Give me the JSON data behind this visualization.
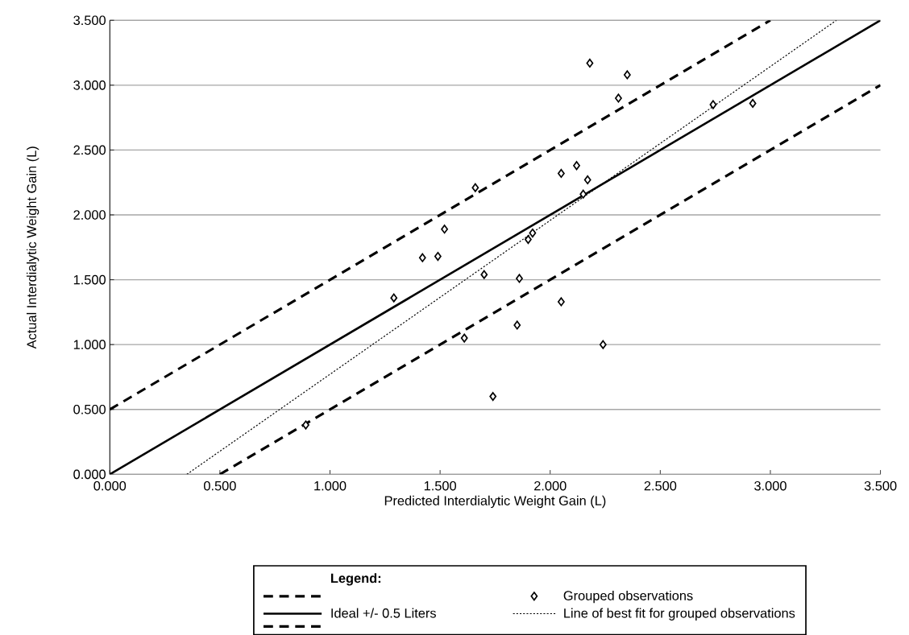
{
  "chart_data": {
    "type": "scatter",
    "xlabel": "Predicted Interdialytic Weight Gain (L)",
    "ylabel": "Actual Interdialytic Weight Gain (L)",
    "legend_title": "Legend:",
    "xlim": [
      0,
      3.5
    ],
    "ylim": [
      0,
      3.5
    ],
    "xticks": [
      {
        "value": 0,
        "label": "0.000"
      },
      {
        "value": 0.5,
        "label": "0.500"
      },
      {
        "value": 1,
        "label": "1.000"
      },
      {
        "value": 1.5,
        "label": "1.500"
      },
      {
        "value": 2,
        "label": "2.000"
      },
      {
        "value": 2.5,
        "label": "2.500"
      },
      {
        "value": 3,
        "label": "3.000"
      },
      {
        "value": 3.5,
        "label": "3.500"
      }
    ],
    "yticks": [
      {
        "value": 0,
        "label": "0.000"
      },
      {
        "value": 0.5,
        "label": "0.500"
      },
      {
        "value": 1,
        "label": "1.000"
      },
      {
        "value": 1.5,
        "label": "1.500"
      },
      {
        "value": 2,
        "label": "2.000"
      },
      {
        "value": 2.5,
        "label": "2.500"
      },
      {
        "value": 3,
        "label": "3.000"
      },
      {
        "value": 3.5,
        "label": "3.500"
      }
    ],
    "grid": "y",
    "legend": "bottom",
    "series": [
      {
        "type": "line",
        "line_style": "dashed",
        "marker": "none",
        "color": "#000000",
        "x": [
          0,
          3.0
        ],
        "values": [
          0.5,
          3.5
        ]
      },
      {
        "type": "line",
        "name": "Ideal +/- 0.5 Liters",
        "line_style": "solid",
        "marker": "none",
        "color": "#000000",
        "x": [
          0,
          3.5
        ],
        "values": [
          0,
          3.5
        ]
      },
      {
        "type": "line",
        "line_style": "dashed",
        "marker": "none",
        "color": "#000000",
        "x": [
          0.5,
          3.5
        ],
        "values": [
          0,
          3.0
        ]
      },
      {
        "type": "scatter",
        "name": "Grouped observations",
        "marker": "diamond",
        "color": "#000000",
        "x": [
          0.89,
          1.29,
          1.42,
          1.49,
          1.52,
          1.66,
          1.7,
          1.61,
          1.74,
          1.85,
          1.86,
          1.9,
          1.92,
          2.05,
          2.05,
          2.12,
          2.15,
          2.17,
          2.18,
          2.24,
          2.31,
          2.35,
          2.74,
          2.92
        ],
        "values": [
          0.38,
          1.36,
          1.67,
          1.68,
          1.89,
          2.21,
          1.54,
          1.05,
          0.6,
          1.15,
          1.51,
          1.81,
          1.86,
          2.32,
          1.33,
          2.38,
          2.16,
          2.27,
          3.17,
          1.0,
          2.9,
          3.08,
          2.85,
          2.86
        ]
      },
      {
        "type": "line",
        "name": "Line of best fit for grouped observations",
        "line_style": "dotted",
        "marker": "none",
        "color": "#000000",
        "x": [
          0.35,
          3.3
        ],
        "values": [
          0,
          3.5
        ]
      }
    ]
  }
}
